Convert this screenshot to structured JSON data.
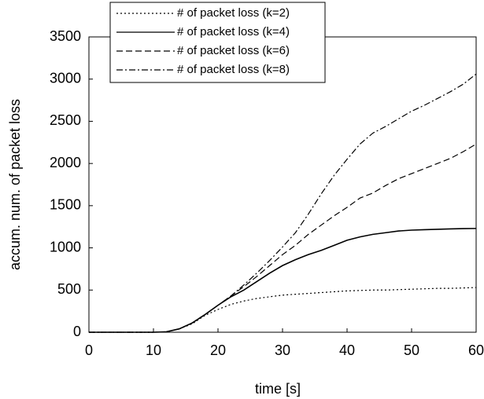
{
  "chart_data": {
    "type": "line",
    "xlabel": "time [s]",
    "ylabel": "accum. num. of packet loss",
    "x": [
      0,
      5,
      10,
      12,
      14,
      16,
      18,
      20,
      22,
      24,
      26,
      28,
      30,
      32,
      34,
      36,
      38,
      40,
      42,
      44,
      46,
      48,
      50,
      52,
      54,
      56,
      58,
      60
    ],
    "series": [
      {
        "name": "# of packet loss (k=2)",
        "color": "#000000",
        "dash": "2,3",
        "values": [
          0,
          0,
          0,
          5,
          40,
          100,
          200,
          270,
          330,
          370,
          400,
          420,
          440,
          450,
          460,
          470,
          480,
          490,
          495,
          500,
          500,
          505,
          510,
          515,
          520,
          520,
          525,
          530
        ]
      },
      {
        "name": "# of packet loss (k=4)",
        "color": "#000000",
        "dash": "none",
        "values": [
          0,
          0,
          0,
          5,
          40,
          110,
          210,
          320,
          420,
          500,
          600,
          700,
          790,
          860,
          920,
          970,
          1030,
          1090,
          1130,
          1160,
          1180,
          1200,
          1210,
          1215,
          1220,
          1225,
          1228,
          1230
        ]
      },
      {
        "name": "# of packet loss (k=6)",
        "color": "#000000",
        "dash": "8,4",
        "values": [
          0,
          0,
          0,
          5,
          40,
          110,
          210,
          320,
          430,
          540,
          660,
          790,
          920,
          1030,
          1160,
          1270,
          1380,
          1480,
          1590,
          1650,
          1740,
          1820,
          1880,
          1940,
          2000,
          2060,
          2140,
          2230
        ]
      },
      {
        "name": "# of packet loss (k=8)",
        "color": "#000000",
        "dash": "8,3,2,3",
        "values": [
          0,
          0,
          0,
          5,
          40,
          110,
          210,
          320,
          430,
          560,
          700,
          850,
          1010,
          1180,
          1400,
          1640,
          1860,
          2050,
          2230,
          2360,
          2440,
          2530,
          2620,
          2690,
          2770,
          2850,
          2940,
          3060
        ]
      }
    ],
    "xlim": [
      0,
      60
    ],
    "xticks": [
      0,
      10,
      20,
      30,
      40,
      50,
      60
    ],
    "ylim": [
      0,
      3500
    ],
    "yticks": [
      0,
      500,
      1000,
      1500,
      2000,
      2500,
      3000,
      3500
    ],
    "legend": "top-left"
  }
}
